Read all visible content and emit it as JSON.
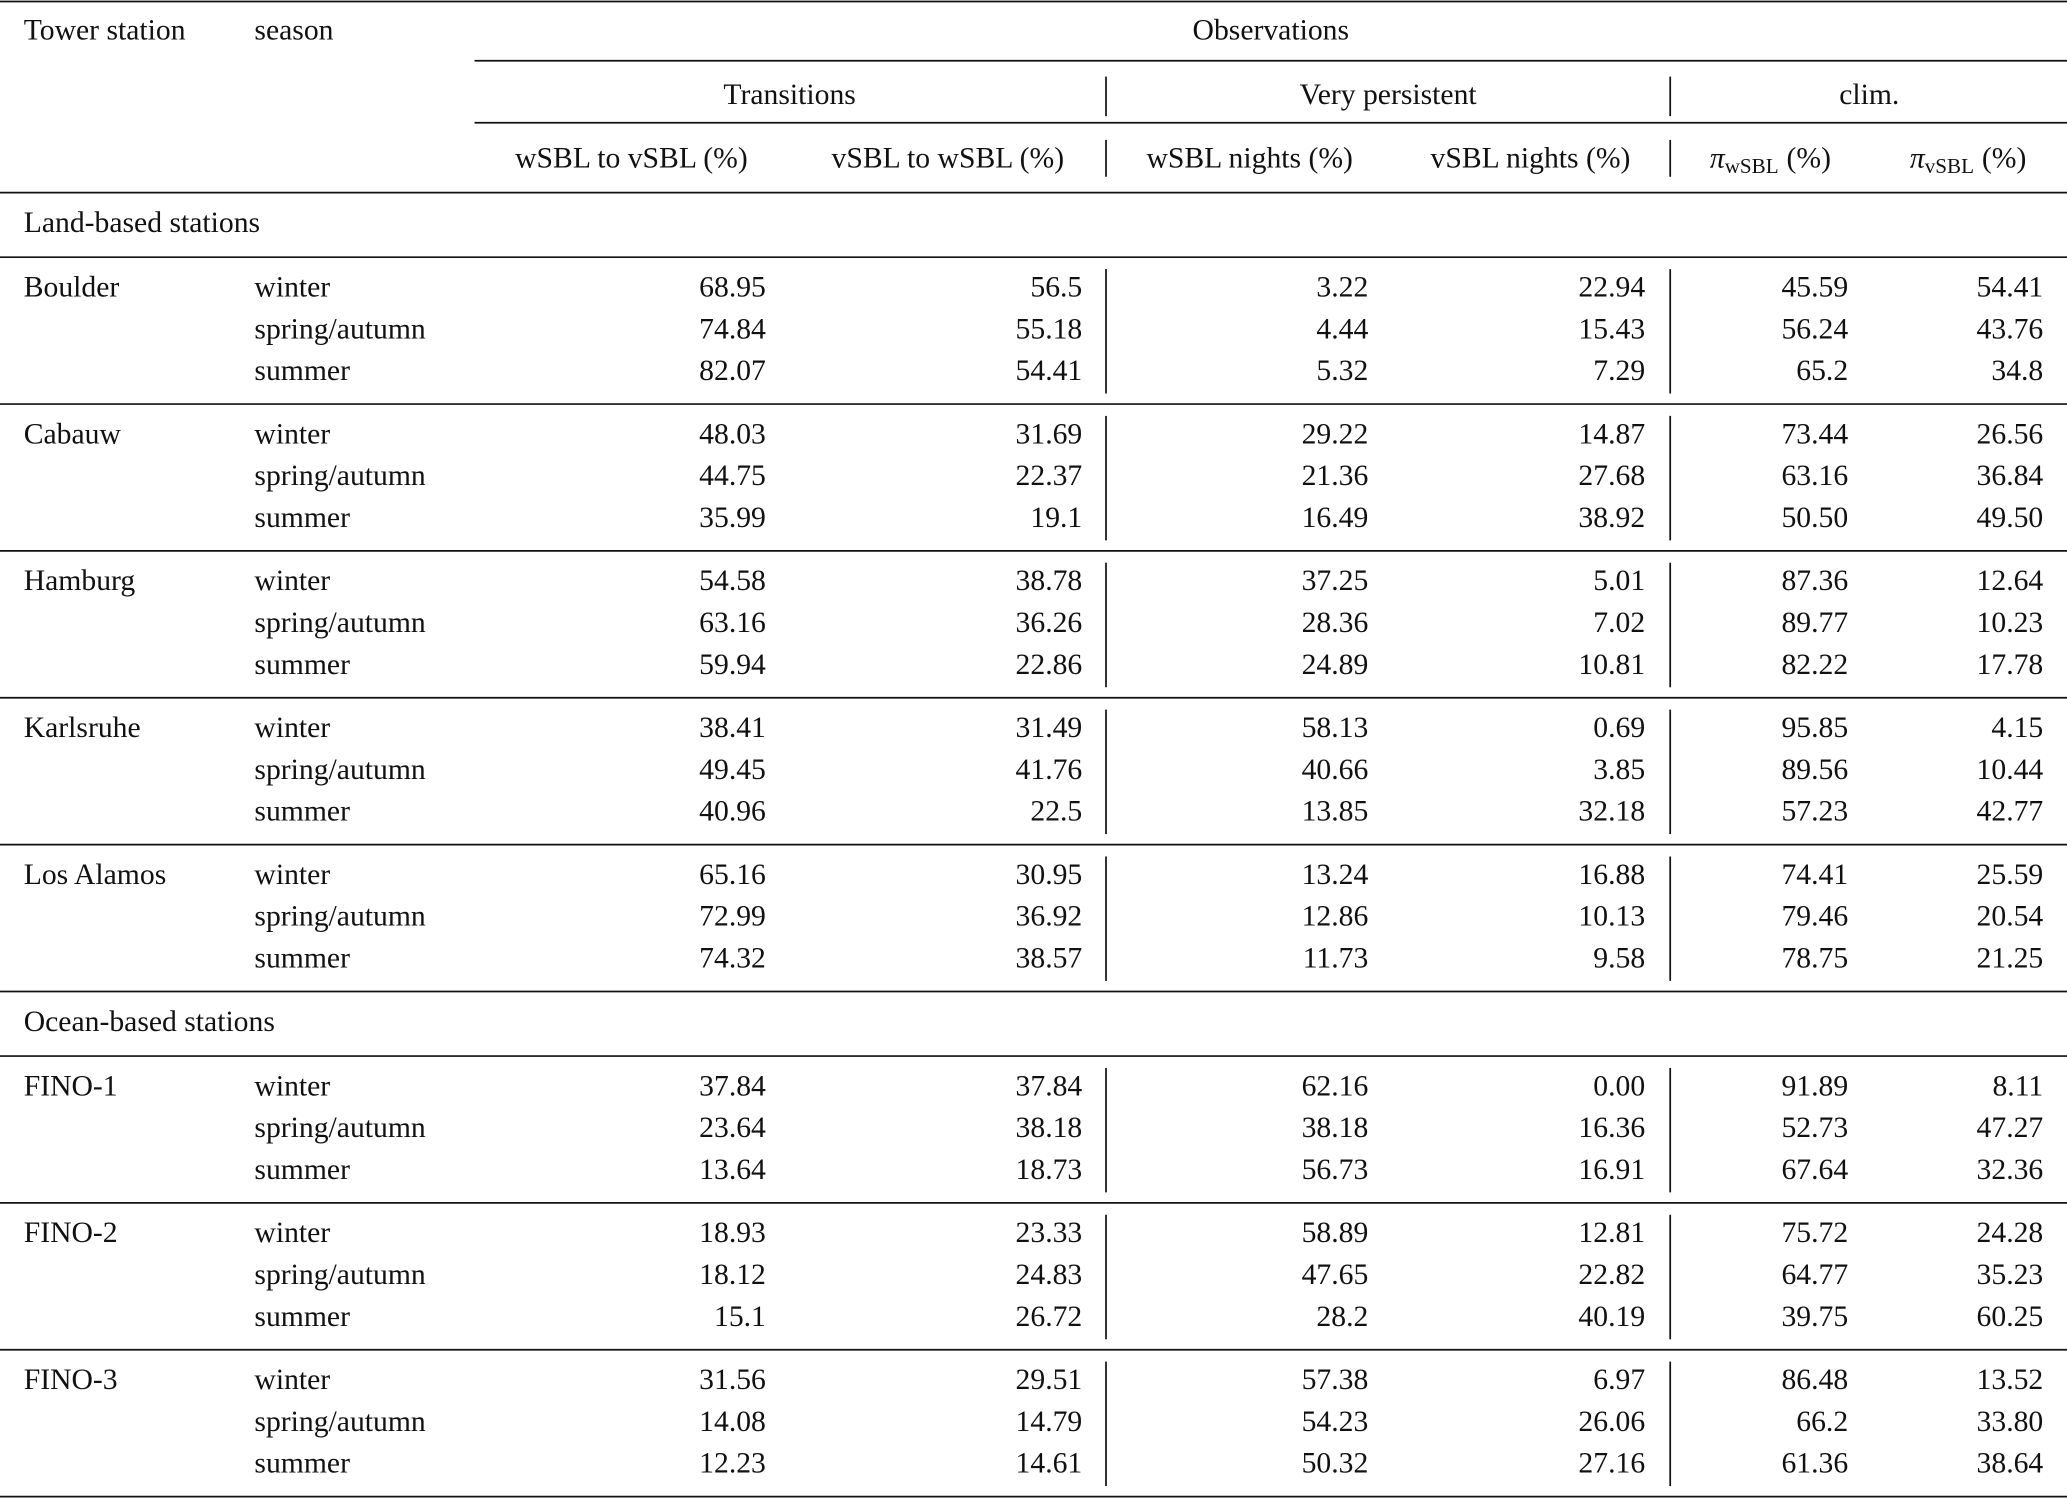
{
  "header": {
    "station": "Tower station",
    "season": "season",
    "observations": "Observations",
    "groups": [
      "Transitions",
      "Very persistent",
      "clim."
    ],
    "columns": [
      "wSBL to vSBL (%)",
      "vSBL to wSBL (%)",
      "wSBL nights (%)",
      "vSBL nights (%)"
    ],
    "pi_columns": [
      {
        "symbol": "π",
        "sub": "wSBL",
        "unit": "(%)"
      },
      {
        "symbol": "π",
        "sub": "vSBL",
        "unit": "(%)"
      }
    ]
  },
  "sections": [
    {
      "title": "Land-based stations",
      "stations": [
        {
          "name": "Boulder",
          "rows": [
            {
              "season": "winter",
              "values": [
                "68.95",
                "56.5",
                "3.22",
                "22.94",
                "45.59",
                "54.41"
              ]
            },
            {
              "season": "spring/autumn",
              "values": [
                "74.84",
                "55.18",
                "4.44",
                "15.43",
                "56.24",
                "43.76"
              ]
            },
            {
              "season": "summer",
              "values": [
                "82.07",
                "54.41",
                "5.32",
                "7.29",
                "65.2",
                "34.8"
              ]
            }
          ]
        },
        {
          "name": "Cabauw",
          "rows": [
            {
              "season": "winter",
              "values": [
                "48.03",
                "31.69",
                "29.22",
                "14.87",
                "73.44",
                "26.56"
              ]
            },
            {
              "season": "spring/autumn",
              "values": [
                "44.75",
                "22.37",
                "21.36",
                "27.68",
                "63.16",
                "36.84"
              ]
            },
            {
              "season": "summer",
              "values": [
                "35.99",
                "19.1",
                "16.49",
                "38.92",
                "50.50",
                "49.50"
              ]
            }
          ]
        },
        {
          "name": "Hamburg",
          "rows": [
            {
              "season": "winter",
              "values": [
                "54.58",
                "38.78",
                "37.25",
                "5.01",
                "87.36",
                "12.64"
              ]
            },
            {
              "season": "spring/autumn",
              "values": [
                "63.16",
                "36.26",
                "28.36",
                "7.02",
                "89.77",
                "10.23"
              ]
            },
            {
              "season": "summer",
              "values": [
                "59.94",
                "22.86",
                "24.89",
                "10.81",
                "82.22",
                "17.78"
              ]
            }
          ]
        },
        {
          "name": "Karlsruhe",
          "rows": [
            {
              "season": "winter",
              "values": [
                "38.41",
                "31.49",
                "58.13",
                "0.69",
                "95.85",
                "4.15"
              ]
            },
            {
              "season": "spring/autumn",
              "values": [
                "49.45",
                "41.76",
                "40.66",
                "3.85",
                "89.56",
                "10.44"
              ]
            },
            {
              "season": "summer",
              "values": [
                "40.96",
                "22.5",
                "13.85",
                "32.18",
                "57.23",
                "42.77"
              ]
            }
          ]
        },
        {
          "name": "Los Alamos",
          "rows": [
            {
              "season": "winter",
              "values": [
                "65.16",
                "30.95",
                "13.24",
                "16.88",
                "74.41",
                "25.59"
              ]
            },
            {
              "season": "spring/autumn",
              "values": [
                "72.99",
                "36.92",
                "12.86",
                "10.13",
                "79.46",
                "20.54"
              ]
            },
            {
              "season": "summer",
              "values": [
                "74.32",
                "38.57",
                "11.73",
                "9.58",
                "78.75",
                "21.25"
              ]
            }
          ]
        }
      ]
    },
    {
      "title": "Ocean-based stations",
      "stations": [
        {
          "name": "FINO-1",
          "rows": [
            {
              "season": "winter",
              "values": [
                "37.84",
                "37.84",
                "62.16",
                "0.00",
                "91.89",
                "8.11"
              ]
            },
            {
              "season": "spring/autumn",
              "values": [
                "23.64",
                "38.18",
                "38.18",
                "16.36",
                "52.73",
                "47.27"
              ]
            },
            {
              "season": "summer",
              "values": [
                "13.64",
                "18.73",
                "56.73",
                "16.91",
                "67.64",
                "32.36"
              ]
            }
          ]
        },
        {
          "name": "FINO-2",
          "rows": [
            {
              "season": "winter",
              "values": [
                "18.93",
                "23.33",
                "58.89",
                "12.81",
                "75.72",
                "24.28"
              ]
            },
            {
              "season": "spring/autumn",
              "values": [
                "18.12",
                "24.83",
                "47.65",
                "22.82",
                "64.77",
                "35.23"
              ]
            },
            {
              "season": "summer",
              "values": [
                "15.1",
                "26.72",
                "28.2",
                "40.19",
                "39.75",
                "60.25"
              ]
            }
          ]
        },
        {
          "name": "FINO-3",
          "rows": [
            {
              "season": "winter",
              "values": [
                "31.56",
                "29.51",
                "57.38",
                "6.97",
                "86.48",
                "13.52"
              ]
            },
            {
              "season": "spring/autumn",
              "values": [
                "14.08",
                "14.79",
                "54.23",
                "26.06",
                "66.2",
                "33.80"
              ]
            },
            {
              "season": "summer",
              "values": [
                "12.23",
                "14.61",
                "50.32",
                "27.16",
                "61.36",
                "38.64"
              ]
            }
          ]
        }
      ]
    }
  ]
}
